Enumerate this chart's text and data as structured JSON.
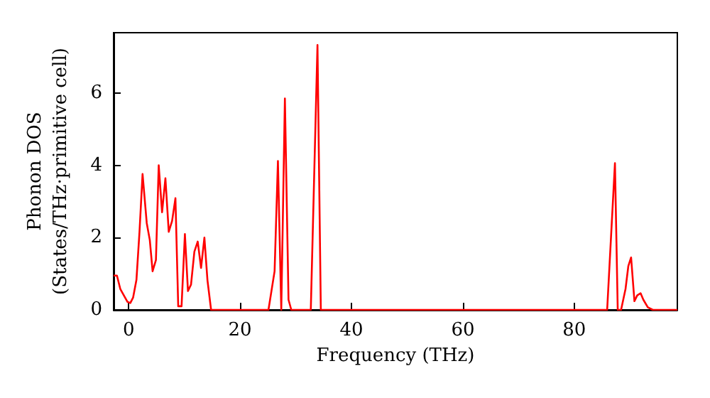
{
  "chart_data": {
    "type": "line",
    "xlabel": "Frequency (THz)",
    "ylabel": "Phonon DOS\n(States/THz·primitive cell)",
    "xlim": [
      -2.7,
      98.5
    ],
    "ylim": [
      0,
      7.67
    ],
    "xticks": [
      0,
      20,
      40,
      60,
      80
    ],
    "yticks": [
      0,
      2,
      4,
      6
    ],
    "grid": false,
    "marker": "none",
    "line_style": "solid",
    "series": [
      {
        "color": "#ff0000",
        "x": [
          -2.7,
          -2.1,
          -1.5,
          -0.2,
          0.3,
          0.8,
          1.4,
          1.95,
          2.5,
          3.25,
          3.8,
          4.3,
          4.9,
          5.4,
          6.0,
          6.6,
          7.2,
          7.8,
          8.4,
          8.9,
          9.5,
          10.1,
          10.65,
          11.2,
          11.8,
          12.4,
          13.0,
          13.6,
          14.15,
          14.8,
          25.1,
          26.2,
          26.8,
          27.4,
          28.05,
          28.7,
          29.2,
          32.7,
          33.9,
          34.5,
          85.9,
          87.3,
          87.8,
          88.4,
          89.2,
          89.7,
          90.2,
          90.8,
          91.3,
          91.9,
          92.4,
          93.2,
          94.1,
          98.5
        ],
        "values": [
          0.95,
          0.95,
          0.58,
          0.22,
          0.19,
          0.34,
          0.83,
          2.16,
          3.76,
          2.4,
          1.93,
          1.07,
          1.38,
          4.0,
          2.7,
          3.64,
          2.16,
          2.46,
          3.09,
          0.1,
          0.1,
          2.1,
          0.52,
          0.7,
          1.61,
          1.89,
          1.16,
          2.0,
          0.82,
          0,
          0,
          1.07,
          4.12,
          0,
          5.85,
          0.28,
          0,
          0,
          7.33,
          0,
          0,
          4.06,
          0,
          0,
          0.58,
          1.21,
          1.45,
          0.24,
          0.4,
          0.46,
          0.28,
          0.07,
          0,
          0
        ]
      }
    ]
  }
}
